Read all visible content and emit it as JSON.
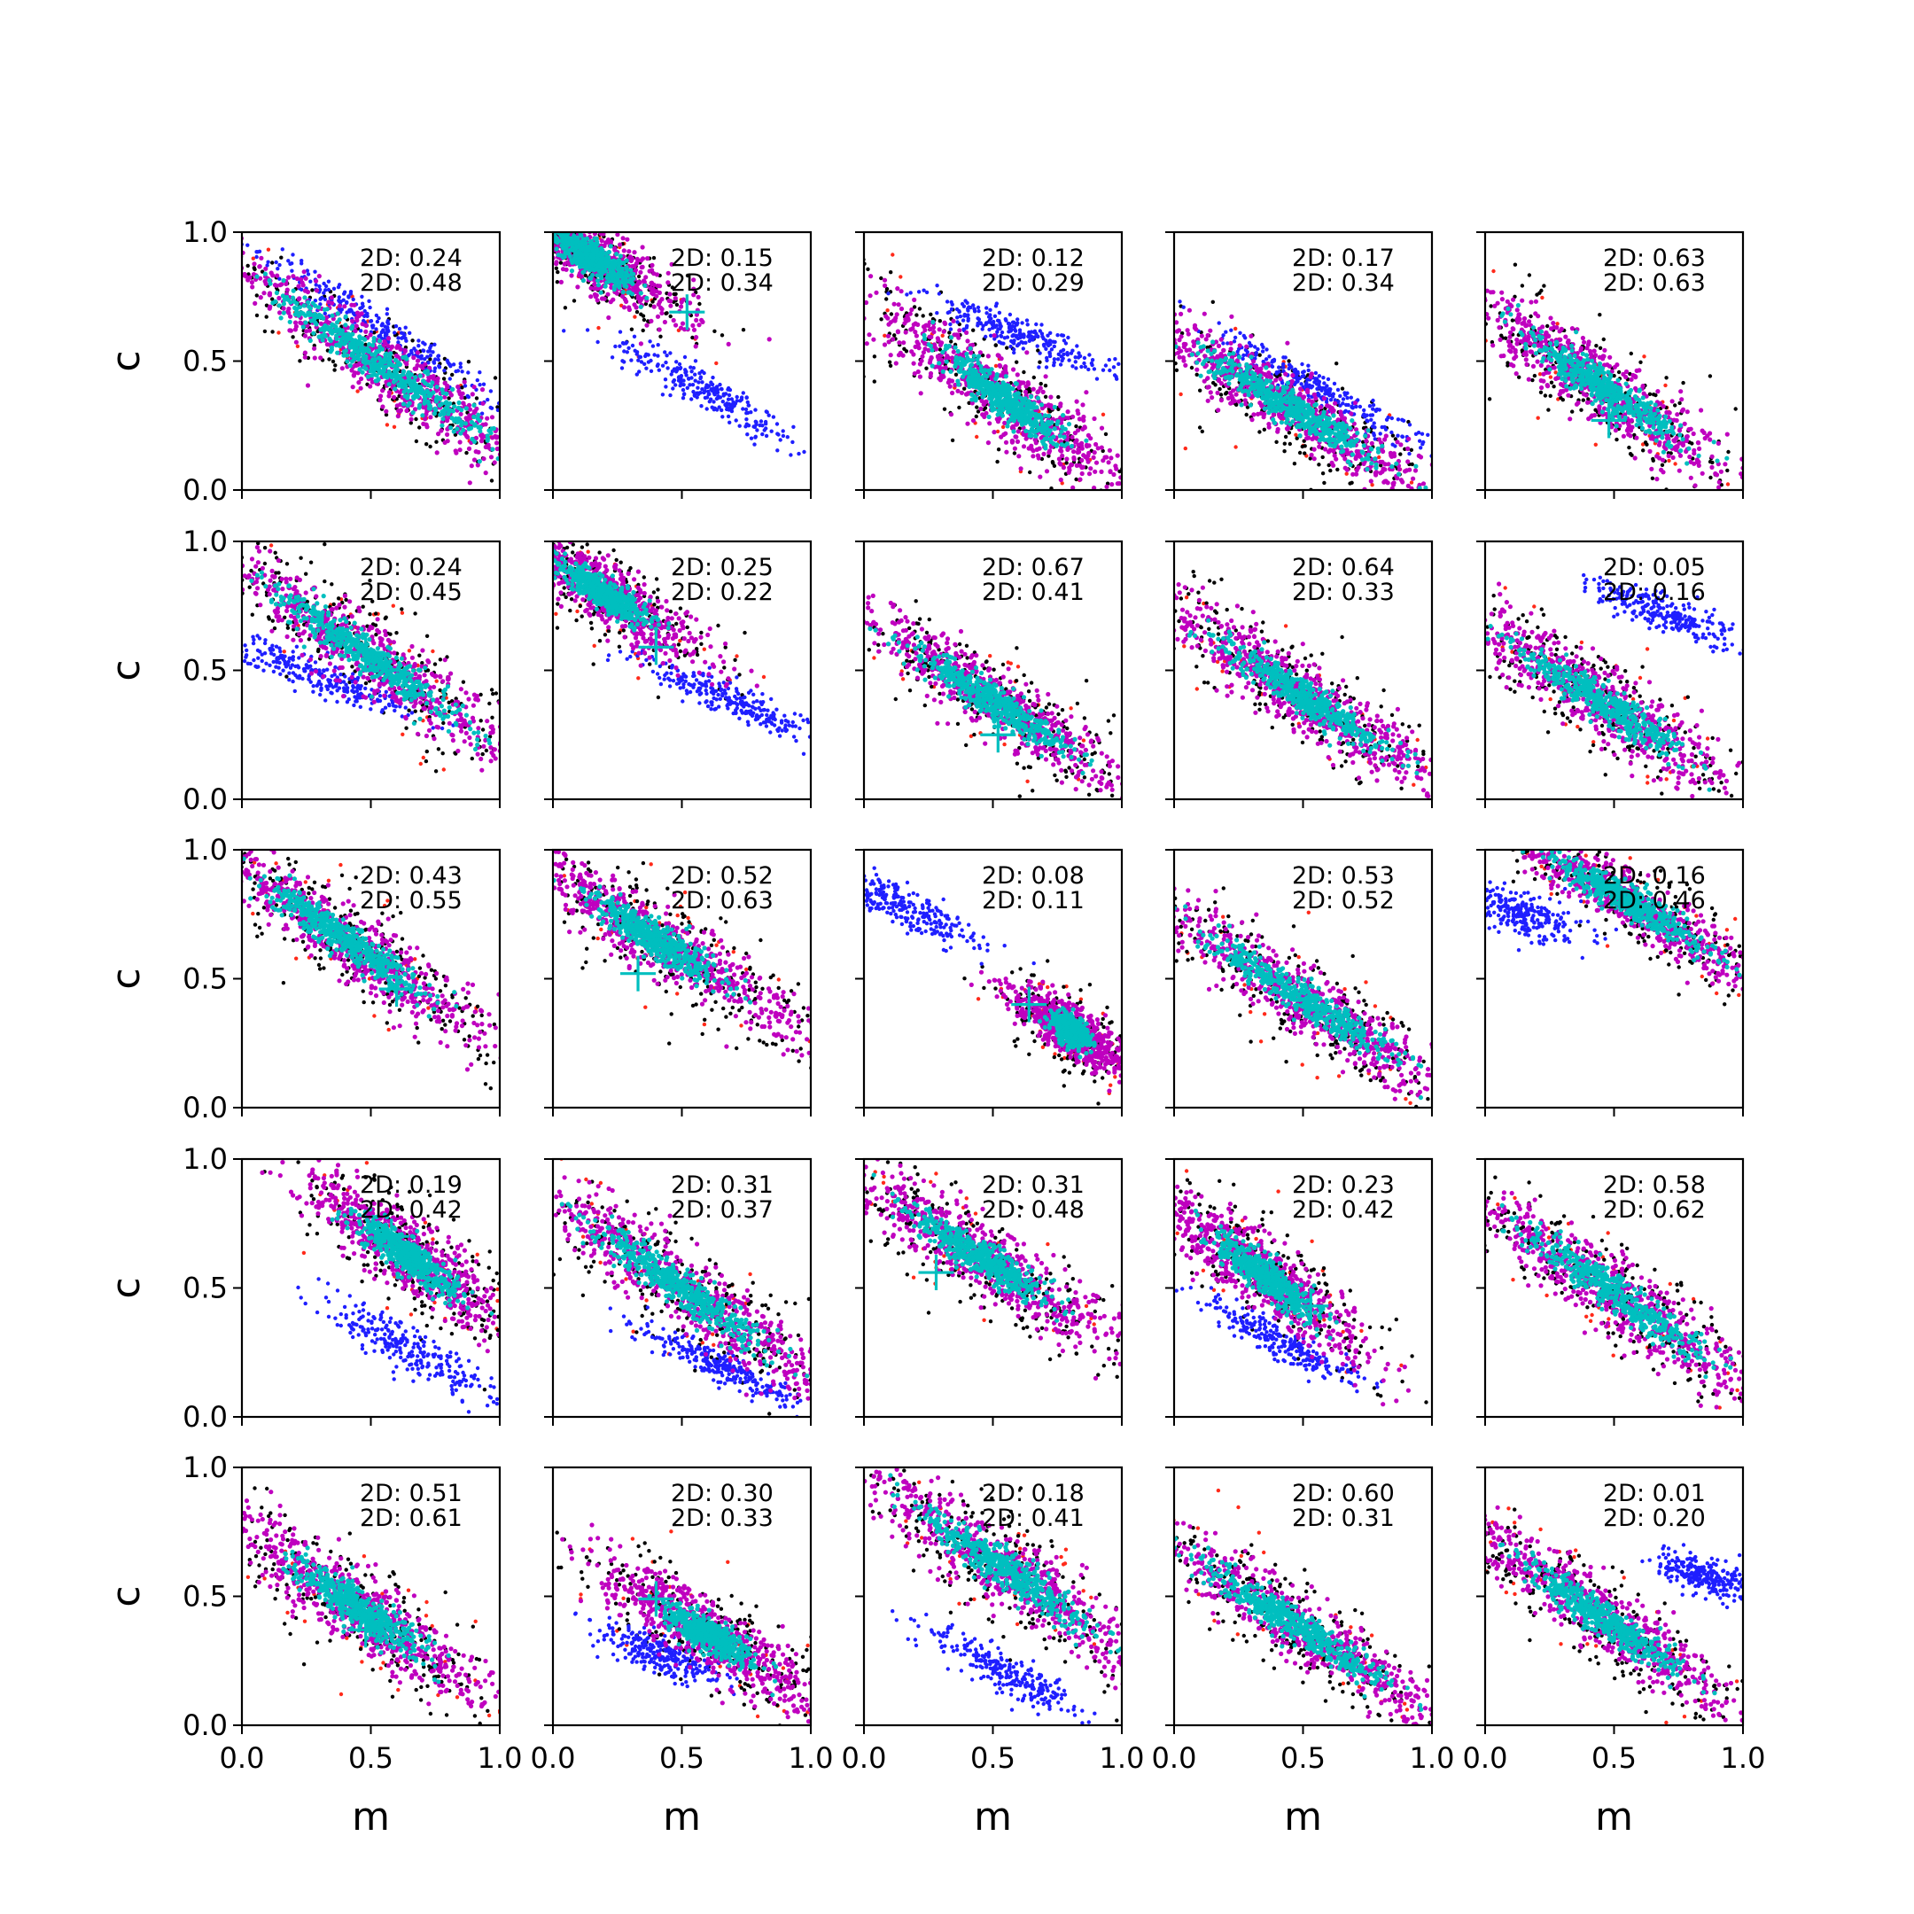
{
  "chart_data": {
    "type": "scatter",
    "layout": {
      "rows": 5,
      "cols": 5
    },
    "xlabel": "m",
    "ylabel": "c",
    "xlim": [
      0,
      1
    ],
    "ylim": [
      0,
      1
    ],
    "xticks": [
      "0.0",
      "0.5",
      "1.0"
    ],
    "yticks": [
      "0.0",
      "0.5",
      "1.0"
    ],
    "colors": {
      "black_points": "#000000",
      "red_points": "#ff2a1a",
      "blue_points": "#1f1fff",
      "magenta_points": "#bf00bf",
      "cyan_points": "#00bfbf",
      "marker": "#00bfbf"
    },
    "panels": [
      {
        "row": 0,
        "col": 0,
        "ann": [
          "2D: 0.24",
          "2D: 0.48"
        ],
        "marker": null,
        "main": {
          "cx": 0.55,
          "cy": 0.48,
          "slope": -0.7,
          "hl": 0.85,
          "hw": 0.14,
          "ci": 0.65
        },
        "blue": {
          "cx": 0.55,
          "cy": 0.62,
          "slope": -0.65,
          "hl": 0.55,
          "hw": 0.06
        }
      },
      {
        "row": 0,
        "col": 1,
        "ann": [
          "2D: 0.15",
          "2D: 0.34"
        ],
        "marker": [
          0.52,
          0.69
        ],
        "main": {
          "cx": 0.15,
          "cy": 0.9,
          "slope": -0.65,
          "hl": 0.45,
          "hw": 0.12,
          "ci": 0.5
        },
        "blue": {
          "cx": 0.6,
          "cy": 0.38,
          "slope": -0.55,
          "hl": 0.45,
          "hw": 0.07
        }
      },
      {
        "row": 0,
        "col": 2,
        "ann": [
          "2D: 0.12",
          "2D: 0.29"
        ],
        "marker": null,
        "main": {
          "cx": 0.55,
          "cy": 0.35,
          "slope": -0.75,
          "hl": 0.7,
          "hw": 0.15,
          "ci": 0.4
        },
        "blue": {
          "cx": 0.6,
          "cy": 0.6,
          "slope": -0.4,
          "hl": 0.4,
          "hw": 0.06
        }
      },
      {
        "row": 0,
        "col": 3,
        "ann": [
          "2D: 0.17",
          "2D: 0.34"
        ],
        "marker": null,
        "main": {
          "cx": 0.45,
          "cy": 0.32,
          "slope": -0.6,
          "hl": 0.7,
          "hw": 0.13,
          "ci": 0.6
        },
        "blue": {
          "cx": 0.55,
          "cy": 0.4,
          "slope": -0.55,
          "hl": 0.5,
          "hw": 0.06
        }
      },
      {
        "row": 0,
        "col": 4,
        "ann": [
          "2D: 0.63",
          "2D: 0.63"
        ],
        "marker": [
          0.48,
          0.27
        ],
        "main": {
          "cx": 0.45,
          "cy": 0.4,
          "slope": -0.7,
          "hl": 0.7,
          "hw": 0.14,
          "ci": 0.55
        },
        "blue": null
      },
      {
        "row": 1,
        "col": 0,
        "ann": [
          "2D: 0.24",
          "2D: 0.45"
        ],
        "marker": [
          0.48,
          0.57
        ],
        "main": {
          "cx": 0.5,
          "cy": 0.55,
          "slope": -0.7,
          "hl": 0.8,
          "hw": 0.14,
          "ci": 0.6
        },
        "blue": {
          "cx": 0.3,
          "cy": 0.48,
          "slope": -0.4,
          "hl": 0.4,
          "hw": 0.06
        }
      },
      {
        "row": 1,
        "col": 1,
        "ann": [
          "2D: 0.25",
          "2D: 0.22"
        ],
        "marker": [
          0.4,
          0.59
        ],
        "main": {
          "cx": 0.2,
          "cy": 0.8,
          "slope": -0.65,
          "hl": 0.5,
          "hw": 0.12,
          "ci": 0.45
        },
        "blue": {
          "cx": 0.7,
          "cy": 0.38,
          "slope": -0.45,
          "hl": 0.4,
          "hw": 0.06
        }
      },
      {
        "row": 1,
        "col": 2,
        "ann": [
          "2D: 0.67",
          "2D: 0.41"
        ],
        "marker": [
          0.52,
          0.25
        ],
        "main": {
          "cx": 0.5,
          "cy": 0.38,
          "slope": -0.65,
          "hl": 0.75,
          "hw": 0.13,
          "ci": 0.55
        },
        "blue": null
      },
      {
        "row": 1,
        "col": 3,
        "ann": [
          "2D: 0.64",
          "2D: 0.33"
        ],
        "marker": [
          0.53,
          0.38
        ],
        "main": {
          "cx": 0.5,
          "cy": 0.4,
          "slope": -0.65,
          "hl": 0.75,
          "hw": 0.13,
          "ci": 0.55
        },
        "blue": null
      },
      {
        "row": 1,
        "col": 4,
        "ann": [
          "2D: 0.05",
          "2D: 0.16"
        ],
        "marker": null,
        "main": {
          "cx": 0.45,
          "cy": 0.38,
          "slope": -0.65,
          "hl": 0.75,
          "hw": 0.14,
          "ci": 0.55
        },
        "blue": {
          "cx": 0.7,
          "cy": 0.72,
          "slope": -0.4,
          "hl": 0.32,
          "hw": 0.07
        }
      },
      {
        "row": 2,
        "col": 0,
        "ann": [
          "2D: 0.43",
          "2D: 0.55"
        ],
        "marker": [
          0.6,
          0.46
        ],
        "main": {
          "cx": 0.4,
          "cy": 0.65,
          "slope": -0.7,
          "hl": 0.75,
          "hw": 0.14,
          "ci": 0.55
        },
        "blue": null
      },
      {
        "row": 2,
        "col": 1,
        "ann": [
          "2D: 0.52",
          "2D: 0.63"
        ],
        "marker": [
          0.33,
          0.52
        ],
        "main": {
          "cx": 0.4,
          "cy": 0.65,
          "slope": -0.65,
          "hl": 0.7,
          "hw": 0.14,
          "ci": 0.45
        },
        "blue": null
      },
      {
        "row": 2,
        "col": 2,
        "ann": [
          "2D: 0.08",
          "2D: 0.11"
        ],
        "marker": [
          0.64,
          0.4
        ],
        "main": {
          "cx": 0.8,
          "cy": 0.3,
          "slope": -0.7,
          "hl": 0.3,
          "hw": 0.1,
          "ci": 0.3
        },
        "blue": {
          "cx": 0.15,
          "cy": 0.78,
          "slope": -0.5,
          "hl": 0.3,
          "hw": 0.07
        }
      },
      {
        "row": 2,
        "col": 3,
        "ann": [
          "2D: 0.53",
          "2D: 0.52"
        ],
        "marker": null,
        "main": {
          "cx": 0.5,
          "cy": 0.42,
          "slope": -0.65,
          "hl": 0.8,
          "hw": 0.13,
          "ci": 0.6
        },
        "blue": null
      },
      {
        "row": 2,
        "col": 4,
        "ann": [
          "2D: 0.16",
          "2D: 0.46"
        ],
        "marker": null,
        "main": {
          "cx": 0.55,
          "cy": 0.8,
          "slope": -0.6,
          "hl": 0.75,
          "hw": 0.12,
          "ci": 0.5
        },
        "blue": {
          "cx": 0.15,
          "cy": 0.75,
          "slope": -0.3,
          "hl": 0.22,
          "hw": 0.08
        }
      },
      {
        "row": 3,
        "col": 0,
        "ann": [
          "2D: 0.19",
          "2D: 0.42"
        ],
        "marker": [
          0.58,
          0.7
        ],
        "main": {
          "cx": 0.65,
          "cy": 0.62,
          "slope": -0.75,
          "hl": 0.55,
          "hw": 0.14,
          "ci": 0.5
        },
        "blue": {
          "cx": 0.65,
          "cy": 0.25,
          "slope": -0.55,
          "hl": 0.4,
          "hw": 0.08
        }
      },
      {
        "row": 3,
        "col": 1,
        "ann": [
          "2D: 0.31",
          "2D: 0.37"
        ],
        "marker": null,
        "main": {
          "cx": 0.5,
          "cy": 0.5,
          "slope": -0.7,
          "hl": 0.85,
          "hw": 0.15,
          "ci": 0.55
        },
        "blue": {
          "cx": 0.65,
          "cy": 0.2,
          "slope": -0.5,
          "hl": 0.35,
          "hw": 0.06
        }
      },
      {
        "row": 3,
        "col": 2,
        "ann": [
          "2D: 0.31",
          "2D: 0.48"
        ],
        "marker": [
          0.28,
          0.56
        ],
        "main": {
          "cx": 0.45,
          "cy": 0.62,
          "slope": -0.65,
          "hl": 0.75,
          "hw": 0.14,
          "ci": 0.45
        },
        "blue": null
      },
      {
        "row": 3,
        "col": 3,
        "ann": [
          "2D: 0.23",
          "2D: 0.42"
        ],
        "marker": [
          0.53,
          0.43
        ],
        "main": {
          "cx": 0.35,
          "cy": 0.55,
          "slope": -0.8,
          "hl": 0.55,
          "hw": 0.13,
          "ci": 0.5
        },
        "blue": {
          "cx": 0.4,
          "cy": 0.3,
          "slope": -0.5,
          "hl": 0.35,
          "hw": 0.06
        }
      },
      {
        "row": 3,
        "col": 4,
        "ann": [
          "2D: 0.58",
          "2D: 0.62"
        ],
        "marker": null,
        "main": {
          "cx": 0.5,
          "cy": 0.48,
          "slope": -0.7,
          "hl": 0.8,
          "hw": 0.14,
          "ci": 0.6
        },
        "blue": null
      },
      {
        "row": 4,
        "col": 0,
        "ann": [
          "2D: 0.51",
          "2D: 0.61"
        ],
        "marker": [
          0.48,
          0.37
        ],
        "main": {
          "cx": 0.45,
          "cy": 0.45,
          "slope": -0.7,
          "hl": 0.7,
          "hw": 0.14,
          "ci": 0.45
        },
        "blue": null
      },
      {
        "row": 4,
        "col": 1,
        "ann": [
          "2D: 0.30",
          "2D: 0.33"
        ],
        "marker": [
          0.4,
          0.49
        ],
        "main": {
          "cx": 0.6,
          "cy": 0.35,
          "slope": -0.6,
          "hl": 0.6,
          "hw": 0.14,
          "ci": 0.35
        },
        "blue": {
          "cx": 0.4,
          "cy": 0.28,
          "slope": -0.4,
          "hl": 0.25,
          "hw": 0.07
        }
      },
      {
        "row": 4,
        "col": 2,
        "ann": [
          "2D: 0.18",
          "2D: 0.41"
        ],
        "marker": null,
        "main": {
          "cx": 0.55,
          "cy": 0.6,
          "slope": -0.7,
          "hl": 0.8,
          "hw": 0.15,
          "ci": 0.55
        },
        "blue": {
          "cx": 0.55,
          "cy": 0.2,
          "slope": -0.55,
          "hl": 0.35,
          "hw": 0.07
        }
      },
      {
        "row": 4,
        "col": 3,
        "ann": [
          "2D: 0.60",
          "2D: 0.31"
        ],
        "marker": null,
        "main": {
          "cx": 0.45,
          "cy": 0.4,
          "slope": -0.65,
          "hl": 0.8,
          "hw": 0.13,
          "ci": 0.6
        },
        "blue": null
      },
      {
        "row": 4,
        "col": 4,
        "ann": [
          "2D: 0.01",
          "2D: 0.20"
        ],
        "marker": null,
        "main": {
          "cx": 0.45,
          "cy": 0.42,
          "slope": -0.7,
          "hl": 0.75,
          "hw": 0.13,
          "ci": 0.55
        },
        "blue": {
          "cx": 0.85,
          "cy": 0.58,
          "slope": -0.3,
          "hl": 0.18,
          "hw": 0.07
        }
      }
    ]
  }
}
